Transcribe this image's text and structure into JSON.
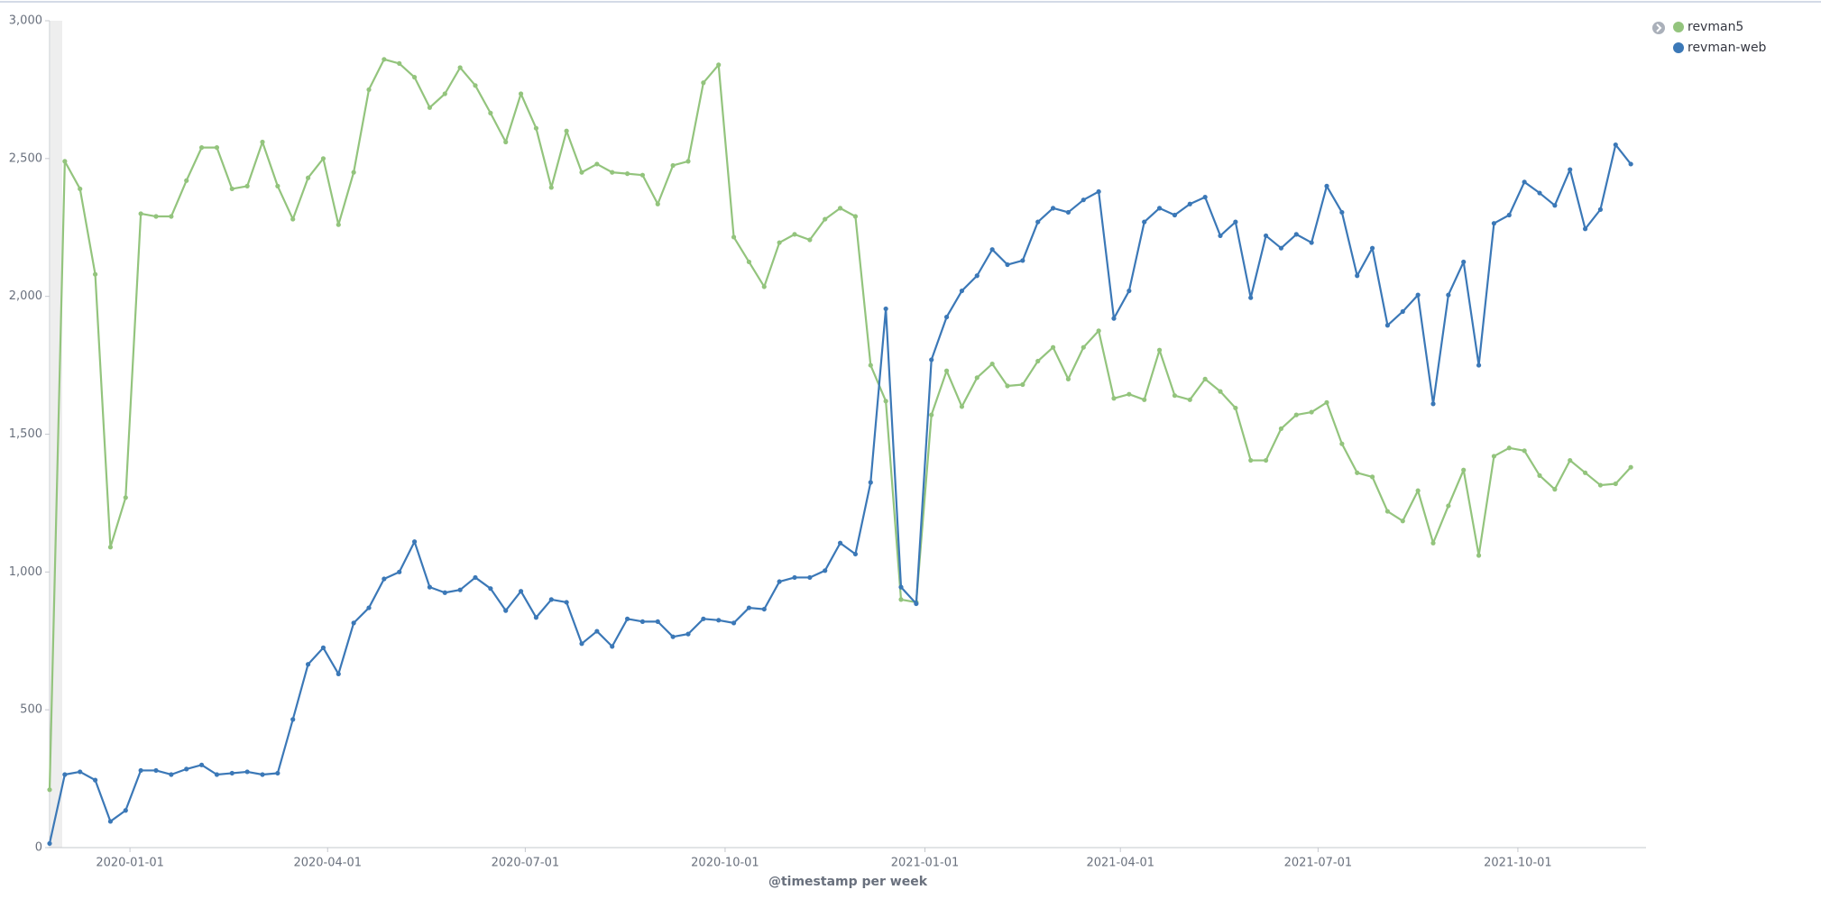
{
  "chart_data": {
    "type": "line",
    "x_label": "@timestamp per week",
    "x": [
      "2019-11-25",
      "2019-12-02",
      "2019-12-09",
      "2019-12-16",
      "2019-12-23",
      "2019-12-30",
      "2020-01-06",
      "2020-01-13",
      "2020-01-20",
      "2020-01-27",
      "2020-02-03",
      "2020-02-10",
      "2020-02-17",
      "2020-02-24",
      "2020-03-02",
      "2020-03-09",
      "2020-03-16",
      "2020-03-23",
      "2020-03-30",
      "2020-04-06",
      "2020-04-13",
      "2020-04-20",
      "2020-04-27",
      "2020-05-04",
      "2020-05-11",
      "2020-05-18",
      "2020-05-25",
      "2020-06-01",
      "2020-06-08",
      "2020-06-15",
      "2020-06-22",
      "2020-06-29",
      "2020-07-06",
      "2020-07-13",
      "2020-07-20",
      "2020-07-27",
      "2020-08-03",
      "2020-08-10",
      "2020-08-17",
      "2020-08-24",
      "2020-08-31",
      "2020-09-07",
      "2020-09-14",
      "2020-09-21",
      "2020-09-28",
      "2020-10-05",
      "2020-10-12",
      "2020-10-19",
      "2020-10-26",
      "2020-11-02",
      "2020-11-09",
      "2020-11-16",
      "2020-11-23",
      "2020-11-30",
      "2020-12-07",
      "2020-12-14",
      "2020-12-21",
      "2020-12-28",
      "2021-01-04",
      "2021-01-11",
      "2021-01-18",
      "2021-01-25",
      "2021-02-01",
      "2021-02-08",
      "2021-02-15",
      "2021-02-22",
      "2021-03-01",
      "2021-03-08",
      "2021-03-15",
      "2021-03-22",
      "2021-03-29",
      "2021-04-05",
      "2021-04-12",
      "2021-04-19",
      "2021-04-26",
      "2021-05-03",
      "2021-05-10",
      "2021-05-17",
      "2021-05-24",
      "2021-05-31",
      "2021-06-07",
      "2021-06-14",
      "2021-06-21",
      "2021-06-28",
      "2021-07-05",
      "2021-07-12",
      "2021-07-19",
      "2021-07-26",
      "2021-08-02",
      "2021-08-09",
      "2021-08-16",
      "2021-08-23",
      "2021-08-30",
      "2021-09-06",
      "2021-09-13",
      "2021-09-20",
      "2021-09-27",
      "2021-10-04",
      "2021-10-11",
      "2021-10-18",
      "2021-10-25",
      "2021-11-01",
      "2021-11-08",
      "2021-11-15",
      "2021-11-22"
    ],
    "series": [
      {
        "name": "revman5",
        "color": "#93c47d",
        "values": [
          210,
          2490,
          2390,
          2080,
          1090,
          1270,
          2300,
          2290,
          2290,
          2420,
          2540,
          2540,
          2390,
          2400,
          2560,
          2400,
          2280,
          2430,
          2500,
          2260,
          2450,
          2750,
          2860,
          2845,
          2795,
          2685,
          2735,
          2830,
          2765,
          2665,
          2560,
          2735,
          2610,
          2395,
          2600,
          2450,
          2480,
          2450,
          2445,
          2440,
          2335,
          2475,
          2490,
          2775,
          2840,
          2215,
          2125,
          2035,
          2195,
          2225,
          2205,
          2280,
          2320,
          2290,
          1750,
          1620,
          900,
          890,
          1570,
          1730,
          1600,
          1705,
          1755,
          1675,
          1680,
          1765,
          1815,
          1700,
          1815,
          1875,
          1630,
          1645,
          1625,
          1805,
          1640,
          1625,
          1700,
          1655,
          1595,
          1405,
          1405,
          1520,
          1570,
          1580,
          1615,
          1465,
          1360,
          1345,
          1220,
          1185,
          1295,
          1105,
          1240,
          1370,
          1060,
          1420,
          1450,
          1440,
          1350,
          1300,
          1405,
          1360,
          1315,
          1320,
          1380
        ]
      },
      {
        "name": "revman-web",
        "color": "#3b78b7",
        "values": [
          15,
          265,
          275,
          245,
          95,
          135,
          280,
          280,
          265,
          285,
          300,
          265,
          270,
          275,
          265,
          270,
          465,
          665,
          725,
          630,
          815,
          870,
          975,
          1000,
          1110,
          945,
          925,
          935,
          980,
          940,
          860,
          930,
          835,
          900,
          890,
          740,
          785,
          730,
          830,
          820,
          820,
          765,
          775,
          830,
          825,
          815,
          870,
          865,
          965,
          980,
          980,
          1005,
          1105,
          1065,
          1325,
          1955,
          945,
          885,
          1770,
          1925,
          2020,
          2075,
          2170,
          2115,
          2130,
          2270,
          2320,
          2305,
          2350,
          2380,
          1920,
          2020,
          2270,
          2320,
          2295,
          2335,
          2360,
          2220,
          2270,
          1995,
          2220,
          2175,
          2225,
          2195,
          2400,
          2305,
          2075,
          2175,
          1895,
          1945,
          2005,
          1610,
          2005,
          2125,
          1750,
          2265,
          2295,
          2415,
          2375,
          2330,
          2460,
          2245,
          2315,
          2550,
          2480
        ]
      }
    ],
    "xlim": [
      "2019-11-25",
      "2021-11-29"
    ],
    "xticks": [
      "2020-01-01",
      "2020-04-01",
      "2020-07-01",
      "2020-10-01",
      "2021-01-01",
      "2021-04-01",
      "2021-07-01",
      "2021-10-01"
    ],
    "ylim": [
      0,
      3000
    ],
    "yticks": [
      0,
      500,
      {
        "value": 1000,
        "label": "1,000"
      },
      {
        "value": 1500,
        "label": "1,500"
      },
      {
        "value": 2000,
        "label": "2,000"
      },
      {
        "value": 2500,
        "label": "2,500"
      },
      {
        "value": 3000,
        "label": "3,000"
      }
    ],
    "grid": false,
    "legend_position": "top-right"
  }
}
